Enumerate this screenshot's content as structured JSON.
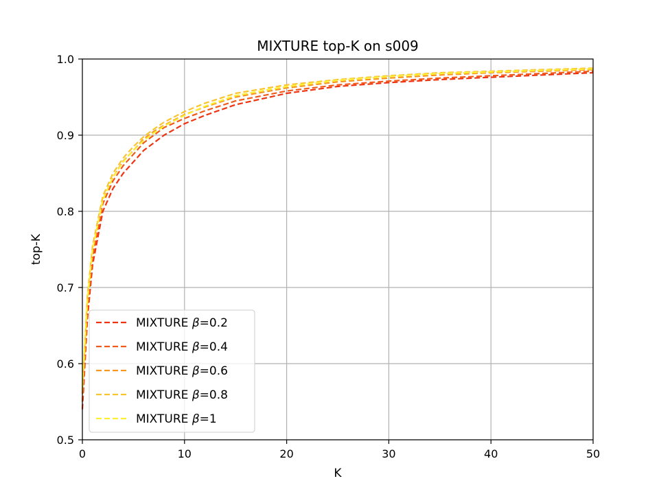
{
  "chart_data": {
    "type": "line",
    "title": "MIXTURE top-K on s009",
    "xlabel": "K",
    "ylabel": "top-K",
    "xlim": [
      0,
      50
    ],
    "ylim": [
      0.5,
      1.0
    ],
    "xticks": [
      "0",
      "10",
      "20",
      "30",
      "40",
      "50"
    ],
    "yticks": [
      "0.5",
      "0.6",
      "0.7",
      "0.8",
      "0.9",
      "1.0"
    ],
    "grid": true,
    "legend_position": "lower-left",
    "x": [
      0,
      0.5,
      1,
      2,
      3,
      4,
      5,
      6,
      7,
      8,
      10,
      12,
      15,
      20,
      25,
      30,
      35,
      40,
      45,
      50
    ],
    "series": [
      {
        "name_prefix": "MIXTURE ",
        "name_symbol": "β",
        "name_suffix": "=0.2",
        "color": "#ee3311",
        "values": [
          0.54,
          0.66,
          0.73,
          0.8,
          0.83,
          0.85,
          0.865,
          0.88,
          0.89,
          0.9,
          0.915,
          0.926,
          0.94,
          0.955,
          0.964,
          0.969,
          0.973,
          0.976,
          0.979,
          0.982
        ]
      },
      {
        "name_prefix": "MIXTURE ",
        "name_symbol": "β",
        "name_suffix": "=0.4",
        "color": "#f05a1a",
        "values": [
          0.55,
          0.67,
          0.74,
          0.81,
          0.84,
          0.86,
          0.875,
          0.89,
          0.9,
          0.91,
          0.922,
          0.932,
          0.945,
          0.958,
          0.966,
          0.971,
          0.975,
          0.978,
          0.981,
          0.984
        ]
      },
      {
        "name_prefix": "MIXTURE ",
        "name_symbol": "β",
        "name_suffix": "=0.6",
        "color": "#f59623",
        "values": [
          0.56,
          0.68,
          0.75,
          0.815,
          0.845,
          0.866,
          0.88,
          0.895,
          0.905,
          0.913,
          0.927,
          0.937,
          0.95,
          0.962,
          0.97,
          0.975,
          0.979,
          0.982,
          0.984,
          0.986
        ]
      },
      {
        "name_prefix": "MIXTURE ",
        "name_symbol": "β",
        "name_suffix": "=0.8",
        "color": "#f9c42e",
        "values": [
          0.565,
          0.69,
          0.755,
          0.82,
          0.85,
          0.87,
          0.885,
          0.898,
          0.908,
          0.917,
          0.931,
          0.942,
          0.955,
          0.966,
          0.973,
          0.978,
          0.982,
          0.984,
          0.986,
          0.988
        ]
      },
      {
        "name_prefix": "MIXTURE ",
        "name_symbol": "β",
        "name_suffix": "=1",
        "color": "#fdf033",
        "values": [
          0.57,
          0.685,
          0.75,
          0.815,
          0.845,
          0.865,
          0.88,
          0.893,
          0.903,
          0.912,
          0.926,
          0.938,
          0.952,
          0.964,
          0.972,
          0.977,
          0.981,
          0.983,
          0.985,
          0.987
        ]
      }
    ]
  }
}
